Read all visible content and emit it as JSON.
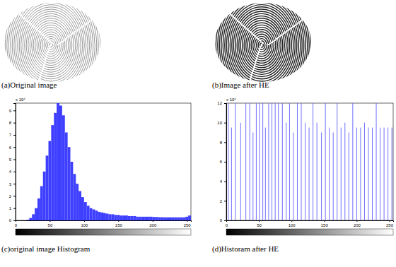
{
  "figure": {
    "captions": [
      "(a)Original image",
      "(b)Image after HE",
      "(c)original image Histogram",
      "(d)Historam after HE"
    ]
  },
  "chart_data": [
    {
      "type": "histogram",
      "annotations": [
        "x 10⁴"
      ],
      "bins": [
        0,
        4,
        8,
        12,
        16,
        20,
        24,
        28,
        32,
        36,
        40,
        44,
        48,
        52,
        56,
        60,
        64,
        68,
        72,
        76,
        80,
        84,
        88,
        92,
        96,
        100,
        104,
        108,
        112,
        116,
        120,
        124,
        128,
        132,
        136,
        140,
        144,
        148,
        152,
        156,
        160,
        164,
        168,
        172,
        176,
        180,
        184,
        188,
        192,
        196,
        200,
        204,
        208,
        212,
        216,
        220,
        224,
        228,
        232,
        236,
        240,
        244,
        248,
        252,
        256
      ],
      "values": [
        0,
        0,
        0,
        0,
        0.05,
        0.2,
        0.5,
        1.0,
        1.8,
        2.8,
        4.0,
        5.3,
        6.5,
        7.8,
        8.8,
        9.6,
        9.4,
        8.6,
        7.2,
        6.0,
        4.8,
        3.8,
        3.0,
        2.4,
        1.9,
        1.5,
        1.2,
        1.0,
        0.9,
        0.8,
        0.7,
        0.65,
        0.6,
        0.55,
        0.5,
        0.5,
        0.45,
        0.45,
        0.4,
        0.4,
        0.4,
        0.35,
        0.35,
        0.35,
        0.3,
        0.3,
        0.3,
        0.3,
        0.3,
        0.3,
        0.28,
        0.28,
        0.26,
        0.26,
        0.25,
        0.25,
        0.25,
        0.25,
        0.25,
        0.25,
        0.25,
        0.25,
        0.3,
        0.4
      ],
      "color": "#3f3fff",
      "xlim": [
        0,
        256
      ],
      "xticks": [
        0,
        50,
        100,
        150,
        200,
        250
      ],
      "ylim": [
        0,
        9.6
      ],
      "yticks": [
        0,
        1,
        2,
        3,
        4,
        5,
        6,
        7,
        8,
        9
      ]
    },
    {
      "type": "stem",
      "annotations": [
        "x 10⁴"
      ],
      "x": [
        0,
        3,
        8,
        14,
        22,
        30,
        36,
        41,
        46,
        51,
        56,
        60,
        65,
        70,
        75,
        80,
        86,
        92,
        97,
        103,
        109,
        115,
        121,
        127,
        133,
        139,
        146,
        152,
        158,
        164,
        170,
        176,
        182,
        188,
        194,
        200,
        206,
        212,
        218,
        224,
        230,
        236,
        242,
        248,
        254
      ],
      "values": [
        12,
        12,
        9.5,
        12,
        10,
        12,
        12,
        9,
        12,
        12,
        12,
        9.5,
        12,
        12,
        12,
        12,
        12,
        10,
        12,
        9,
        12,
        12,
        10,
        9.5,
        12,
        10,
        9,
        12,
        9.5,
        9,
        12,
        9.5,
        10,
        9,
        12,
        9.5,
        9.5,
        10,
        9.5,
        9.5,
        12,
        9.5,
        9.5,
        9.5,
        9.5
      ],
      "color": "#7070ff",
      "xlim": [
        0,
        256
      ],
      "xticks": [
        0,
        50,
        100,
        150,
        200,
        250
      ],
      "ylim": [
        0,
        12
      ],
      "yticks": [
        0,
        2,
        4,
        6,
        8,
        10,
        12
      ]
    }
  ]
}
